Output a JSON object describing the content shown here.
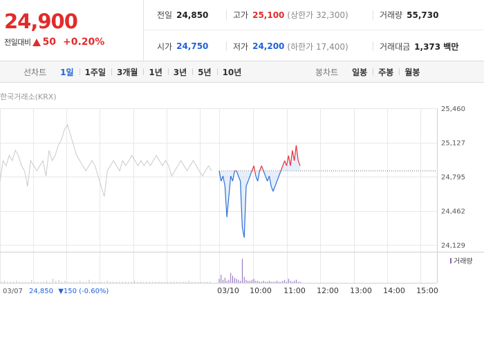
{
  "summary": {
    "price": "24,900",
    "change_label": "전일대비",
    "change_value": "50",
    "change_pct": "+0.20%",
    "stats_row1": [
      {
        "label": "전일",
        "value": "24,850",
        "color": "#222222"
      },
      {
        "label": "고가",
        "value": "25,100",
        "color": "#e22b2b",
        "sub": "(상한가 32,300)"
      },
      {
        "label": "거래량",
        "value": "55,730",
        "color": "#222222"
      }
    ],
    "stats_row2": [
      {
        "label": "시가",
        "value": "24,750",
        "color": "#1f62d6"
      },
      {
        "label": "저가",
        "value": "24,200",
        "color": "#1f62d6",
        "sub": "(하한가 17,400)"
      },
      {
        "label": "거래대금",
        "value": "1,373 백만",
        "color": "#222222"
      }
    ]
  },
  "tabs": {
    "line_title": "선차트",
    "line_tabs": [
      "1일",
      "1주일",
      "3개월",
      "1년",
      "3년",
      "5년",
      "10년"
    ],
    "active": "1일",
    "candle_title": "봉차트",
    "candle_tabs": [
      "일봉",
      "주봉",
      "월봉"
    ]
  },
  "chart": {
    "source": "한국거래소(KRX)",
    "prev_info_date": "03/07",
    "prev_info_price": "24,850",
    "prev_info_change": "▼150 (-0.60%)",
    "volume_legend": "거래량",
    "colors": {
      "up": "#e8303a",
      "down": "#2b6fd6",
      "prev": "#c9c9c9",
      "grid": "#e7e7e7",
      "volume_prev": "#bbbbbb",
      "volume_today": "#8866bb",
      "fill": "#cfe0f5"
    }
  },
  "chart_data": {
    "type": "line",
    "title": "",
    "ylabel": "",
    "y_ticks": [
      "25,460",
      "25,127",
      "24,795",
      "24,462",
      "24,129"
    ],
    "ylim": [
      24129,
      25460
    ],
    "x_ticks": [
      "03/10",
      "10:00",
      "11:00",
      "12:00",
      "13:00",
      "14:00",
      "15:00"
    ],
    "prev_close": 24850,
    "series": [
      {
        "name": "",
        "previous_day": [
          24750,
          24950,
          24900,
          25000,
          24950,
          25050,
          25000,
          24900,
          24850,
          24700,
          24950,
          24900,
          24850,
          24900,
          24950,
          24800,
          25050,
          24950,
          25000,
          25100,
          25150,
          25250,
          25300,
          25200,
          25100,
          25000,
          24950,
          24900,
          24850,
          24900,
          24950,
          24900,
          24800,
          24700,
          24600,
          24850,
          24900,
          24950,
          24900,
          24850,
          24950,
          24900,
          24950,
          25000,
          24950,
          24900,
          24950,
          24900,
          24950,
          24900,
          24950,
          25000,
          24950,
          24900,
          24950,
          24900,
          24800,
          24850,
          24900,
          24950,
          24900,
          24850,
          24900,
          24950,
          24900,
          24850,
          24800,
          24850,
          24900,
          24850
        ],
        "today": [
          24850,
          24750,
          24800,
          24700,
          24400,
          24600,
          24800,
          24750,
          24850,
          24850,
          24800,
          24750,
          24300,
          24200,
          24700,
          24750,
          24800,
          24850,
          24900,
          24800,
          24750,
          24850,
          24900,
          24850,
          24800,
          24750,
          24800,
          24700,
          24650,
          24700,
          24750,
          24800,
          24850,
          24900,
          24950,
          24900,
          25000,
          24900,
          25050,
          24950,
          25100,
          24950,
          24900
        ]
      }
    ],
    "volume": {
      "previous_day": [
        1,
        2,
        1,
        1,
        1,
        2,
        1,
        1,
        1,
        1,
        3,
        1,
        1,
        1,
        1,
        2,
        1,
        4,
        2,
        3,
        1,
        2,
        1,
        1,
        1,
        1,
        2,
        1,
        1,
        3,
        1,
        1,
        1,
        1,
        1,
        2,
        1,
        1,
        1,
        1,
        1,
        1,
        1,
        1,
        2,
        1,
        1,
        1,
        1,
        1,
        1,
        1,
        1,
        1,
        1,
        1,
        1,
        1,
        1,
        1,
        1,
        1,
        2,
        1,
        1,
        1,
        1,
        1,
        1,
        1
      ],
      "today": [
        4,
        8,
        3,
        5,
        2,
        3,
        10,
        7,
        5,
        4,
        3,
        2,
        24,
        6,
        3,
        2,
        2,
        3,
        4,
        2,
        2,
        1,
        1,
        2,
        1,
        1,
        2,
        1,
        1,
        1,
        2,
        1,
        1,
        2,
        3,
        1,
        4,
        2,
        1,
        2,
        3,
        1,
        1
      ]
    }
  }
}
